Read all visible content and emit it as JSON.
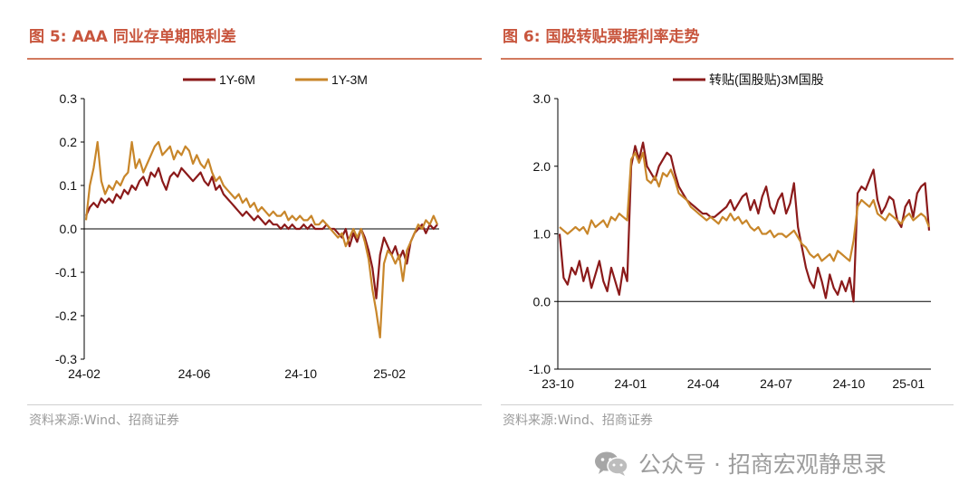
{
  "left_panel": {
    "title": "图 5:  AAA 同业存单期限利差",
    "source": "资料来源:Wind、招商证券"
  },
  "right_panel": {
    "title": "图 6:  国股转贴票据利率走势",
    "source": "资料来源:Wind、招商证券"
  },
  "watermark": {
    "text": "公众号 · 招商宏观静思录",
    "icon": "wechat-icon"
  },
  "colors": {
    "dark_red": "#8b1a1a",
    "gold": "#c8862a",
    "title": "#c8553d"
  },
  "chart_data": [
    {
      "type": "line",
      "x_ticks": [
        "24-02",
        "24-06",
        "24-10",
        "25-02"
      ],
      "ylim": [
        -0.3,
        0.3
      ],
      "y_ticks": [
        "0.3",
        "0.2",
        "0.1",
        "0.0",
        "-0.1",
        "-0.2",
        "-0.3"
      ],
      "legend_position": "top",
      "series": [
        {
          "name": "1Y-6M",
          "color": "#8b1a1a",
          "values": [
            0.03,
            0.05,
            0.06,
            0.05,
            0.07,
            0.06,
            0.07,
            0.06,
            0.08,
            0.07,
            0.09,
            0.08,
            0.1,
            0.09,
            0.11,
            0.12,
            0.1,
            0.13,
            0.12,
            0.14,
            0.11,
            0.09,
            0.12,
            0.13,
            0.12,
            0.14,
            0.13,
            0.12,
            0.11,
            0.12,
            0.13,
            0.11,
            0.1,
            0.12,
            0.09,
            0.1,
            0.08,
            0.07,
            0.06,
            0.05,
            0.04,
            0.03,
            0.04,
            0.03,
            0.02,
            0.03,
            0.02,
            0.01,
            0.02,
            0.01,
            0.01,
            0.0,
            0.01,
            0.0,
            0.01,
            0.0,
            0.0,
            0.01,
            0.0,
            0.01,
            0.0,
            0.0,
            0.0,
            0.01,
            0.0,
            0.0,
            -0.01,
            -0.02,
            0.0,
            -0.04,
            -0.01,
            -0.03,
            0.0,
            -0.02,
            -0.05,
            -0.09,
            -0.16,
            -0.06,
            -0.02,
            -0.04,
            -0.06,
            -0.04,
            -0.07,
            -0.05,
            -0.08,
            -0.03,
            -0.01,
            0.0,
            0.01,
            -0.01,
            0.01,
            0.0,
            0.01
          ]
        },
        {
          "name": "1Y-3M",
          "color": "#c8862a",
          "values": [
            0.02,
            0.1,
            0.14,
            0.2,
            0.11,
            0.08,
            0.1,
            0.09,
            0.11,
            0.1,
            0.12,
            0.13,
            0.2,
            0.14,
            0.16,
            0.13,
            0.15,
            0.17,
            0.19,
            0.2,
            0.17,
            0.18,
            0.19,
            0.16,
            0.18,
            0.17,
            0.19,
            0.18,
            0.15,
            0.17,
            0.15,
            0.14,
            0.16,
            0.13,
            0.11,
            0.12,
            0.1,
            0.09,
            0.08,
            0.07,
            0.08,
            0.06,
            0.07,
            0.05,
            0.06,
            0.04,
            0.05,
            0.04,
            0.03,
            0.04,
            0.03,
            0.03,
            0.04,
            0.02,
            0.03,
            0.02,
            0.03,
            0.02,
            0.02,
            0.03,
            0.01,
            0.01,
            0.02,
            0.01,
            0.0,
            -0.01,
            -0.02,
            -0.01,
            -0.04,
            -0.02,
            0.0,
            -0.02,
            0.0,
            -0.03,
            -0.07,
            -0.14,
            -0.19,
            -0.25,
            -0.08,
            -0.05,
            -0.06,
            -0.08,
            -0.06,
            -0.12,
            -0.05,
            -0.03,
            -0.01,
            0.01,
            0.0,
            0.02,
            0.01,
            0.03,
            0.01
          ]
        }
      ]
    },
    {
      "type": "line",
      "x_ticks": [
        "23-10",
        "24-01",
        "24-04",
        "24-07",
        "24-10",
        "25-01"
      ],
      "ylim": [
        -1.0,
        3.0
      ],
      "y_ticks": [
        "3.0",
        "2.0",
        "1.0",
        "0.0",
        "-1.0"
      ],
      "legend_position": "top",
      "series": [
        {
          "name": "转贴(国股贴)3M国股",
          "color": "#8b1a1a",
          "values": [
            1.0,
            0.35,
            0.25,
            0.5,
            0.4,
            0.6,
            0.3,
            0.5,
            0.2,
            0.4,
            0.6,
            0.3,
            0.15,
            0.5,
            0.3,
            0.1,
            0.5,
            0.3,
            2.0,
            2.3,
            2.1,
            2.35,
            2.0,
            1.9,
            1.8,
            2.0,
            2.1,
            2.2,
            2.15,
            1.9,
            1.7,
            1.6,
            1.5,
            1.45,
            1.4,
            1.35,
            1.3,
            1.3,
            1.25,
            1.25,
            1.3,
            1.35,
            1.4,
            1.5,
            1.35,
            1.45,
            1.55,
            1.6,
            1.35,
            1.5,
            1.3,
            1.55,
            1.7,
            1.4,
            1.3,
            1.5,
            1.6,
            1.3,
            1.45,
            1.75,
            1.1,
            0.8,
            0.5,
            0.3,
            0.2,
            0.5,
            0.3,
            0.05,
            0.4,
            0.2,
            0.1,
            0.3,
            0.15,
            0.35,
            0.0,
            1.6,
            1.7,
            1.65,
            1.8,
            1.95,
            1.5,
            1.3,
            1.4,
            1.55,
            1.5,
            1.2,
            1.1,
            1.4,
            1.5,
            1.25,
            1.6,
            1.7,
            1.75,
            1.05
          ]
        },
        {
          "name": "",
          "color": "#c8862a",
          "values": [
            1.1,
            1.05,
            1.0,
            1.05,
            1.1,
            1.05,
            1.1,
            1.0,
            1.2,
            1.1,
            1.15,
            1.2,
            1.1,
            1.25,
            1.2,
            1.3,
            1.25,
            1.2,
            2.1,
            2.2,
            2.05,
            2.2,
            1.8,
            1.75,
            1.85,
            1.7,
            1.9,
            1.85,
            1.95,
            1.8,
            1.6,
            1.55,
            1.5,
            1.4,
            1.35,
            1.3,
            1.25,
            1.2,
            1.25,
            1.2,
            1.15,
            1.25,
            1.2,
            1.3,
            1.2,
            1.25,
            1.15,
            1.2,
            1.1,
            1.05,
            1.1,
            1.0,
            1.0,
            1.05,
            0.95,
            1.0,
            1.0,
            0.95,
            1.0,
            1.05,
            0.95,
            0.85,
            0.8,
            0.7,
            0.65,
            0.7,
            0.6,
            0.65,
            0.7,
            0.6,
            0.75,
            0.7,
            0.65,
            0.6,
            0.9,
            1.4,
            1.5,
            1.45,
            1.4,
            1.5,
            1.3,
            1.25,
            1.2,
            1.3,
            1.25,
            1.2,
            1.15,
            1.25,
            1.3,
            1.2,
            1.25,
            1.3,
            1.25,
            1.1
          ]
        }
      ]
    }
  ]
}
